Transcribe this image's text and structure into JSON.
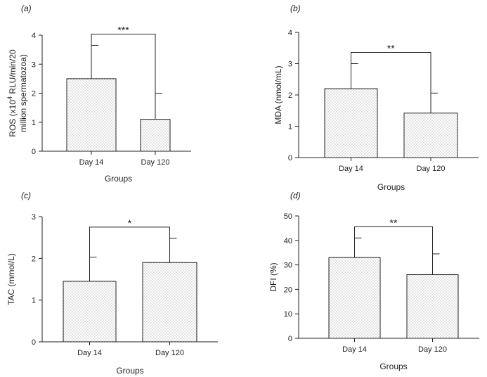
{
  "chart_data": [
    {
      "type": "bar",
      "panel_label": "(a)",
      "categories": [
        "Day 14",
        "Day 120"
      ],
      "values": [
        2.5,
        1.1
      ],
      "errors": [
        1.15,
        0.9
      ],
      "xlabel": "Groups",
      "ylabel_line1": "ROS (x10",
      "ylabel_sup": "4",
      "ylabel_line1_rest": " RLU/min/20",
      "ylabel_line2": "million spermatozoa)",
      "ylim": [
        0,
        4
      ],
      "yticks": [
        "0",
        "1",
        "2",
        "3",
        "4"
      ],
      "significance": "***",
      "grid": false
    },
    {
      "type": "bar",
      "panel_label": "(b)",
      "categories": [
        "Day 14",
        "Day 120"
      ],
      "values": [
        2.2,
        1.42
      ],
      "errors": [
        0.8,
        0.64
      ],
      "xlabel": "Groups",
      "ylabel": "MDA (nmol/mL)",
      "ylim": [
        0,
        4
      ],
      "yticks": [
        "0",
        "1",
        "2",
        "3",
        "4"
      ],
      "significance": "**",
      "grid": false
    },
    {
      "type": "bar",
      "panel_label": "(c)",
      "categories": [
        "Day 14",
        "Day 120"
      ],
      "values": [
        1.45,
        1.9
      ],
      "errors": [
        0.58,
        0.58
      ],
      "xlabel": "Groups",
      "ylabel": "TAC (mmol/L)",
      "ylim": [
        0,
        3
      ],
      "yticks": [
        "0",
        "1",
        "2",
        "3"
      ],
      "significance": "*",
      "grid": false
    },
    {
      "type": "bar",
      "panel_label": "(d)",
      "categories": [
        "Day 14",
        "Day 120"
      ],
      "values": [
        33,
        26
      ],
      "errors": [
        8,
        8.5
      ],
      "xlabel": "Groups",
      "ylabel": "DFI (%)",
      "ylim": [
        0,
        50
      ],
      "yticks": [
        "0",
        "10",
        "20",
        "30",
        "40",
        "50"
      ],
      "significance": "**",
      "grid": false
    }
  ],
  "colors": {
    "bar_fill": "#ffffff",
    "stipple": "#777777",
    "line": "#222222"
  }
}
